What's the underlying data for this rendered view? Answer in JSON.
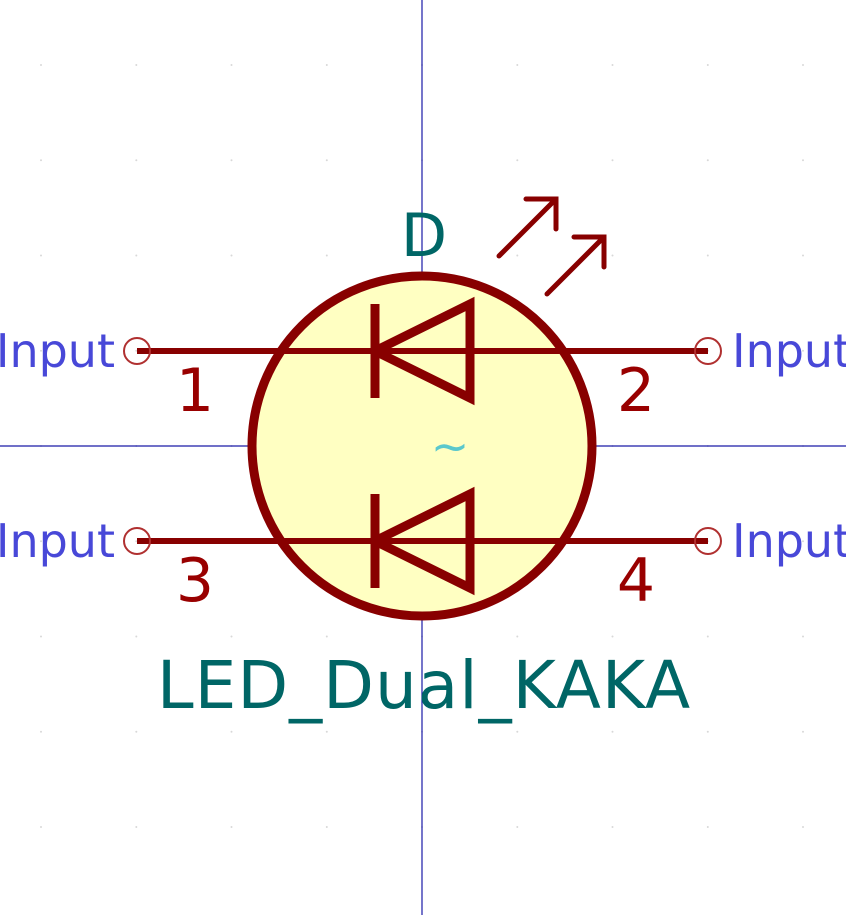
{
  "symbol": {
    "reference": "D",
    "value": "LED_Dual_KAKA",
    "center_mark": "~",
    "colors": {
      "body_outline": "#880000",
      "body_fill": "#ffffc2",
      "pin_line": "#880000",
      "pin_number": "#990000",
      "pin_type": "#4848d8",
      "field_text": "#006666",
      "axis": "#1a1aa8"
    }
  },
  "pins": [
    {
      "number": "1",
      "type": "Input"
    },
    {
      "number": "2",
      "type": "Input"
    },
    {
      "number": "3",
      "type": "Input"
    },
    {
      "number": "4",
      "type": "Input"
    }
  ]
}
